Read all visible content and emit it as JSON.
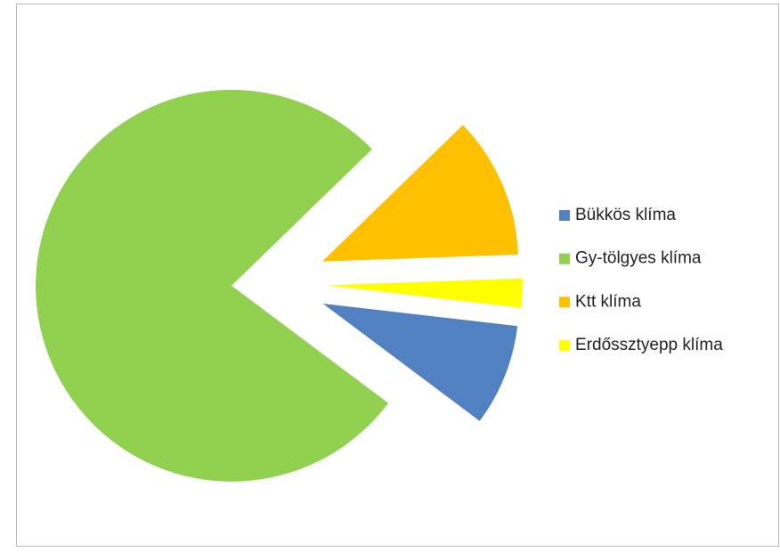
{
  "chart_data": {
    "type": "pie",
    "categories": [
      "Bükkös klíma",
      "Gy-tölgyes klíma",
      "Ktt klíma",
      "Erdőssztyepp klíma"
    ],
    "values": [
      8.4,
      77.5,
      11.7,
      2.4
    ],
    "colors": [
      "#5181c0",
      "#92d050",
      "#ffc000",
      "#ffff00"
    ],
    "legend": "right"
  }
}
